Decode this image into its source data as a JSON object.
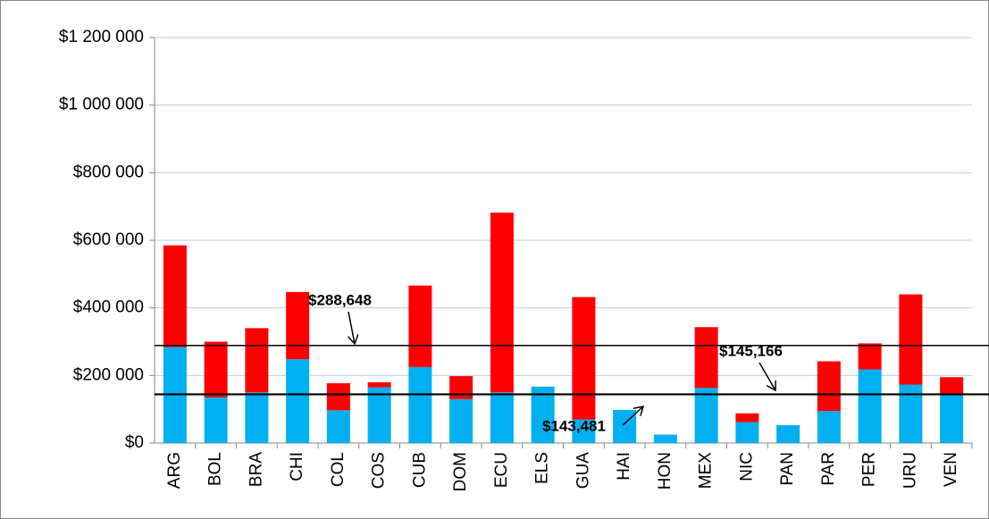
{
  "chart_data": {
    "type": "stacked_bar",
    "categories": [
      "ARG",
      "BOL",
      "BRA",
      "CHI",
      "COL",
      "COS",
      "CUB",
      "DOM",
      "ECU",
      "ELS",
      "GUA",
      "HAI",
      "HON",
      "MEX",
      "NIC",
      "PAN",
      "PAR",
      "PER",
      "URU",
      "VEN"
    ],
    "series": [
      {
        "color": "#00b0f0",
        "values": [
          284000,
          135000,
          150000,
          248000,
          97000,
          165000,
          225000,
          130000,
          150000,
          167000,
          70000,
          98000,
          25000,
          163000,
          62000,
          53000,
          95000,
          218000,
          173000,
          145000
        ]
      },
      {
        "color": "#ff0000",
        "values": [
          301000,
          165000,
          190000,
          199000,
          80000,
          15000,
          241000,
          68000,
          532000,
          0,
          362000,
          0,
          0,
          180000,
          26000,
          0,
          147000,
          77000,
          267000,
          50000
        ]
      }
    ],
    "ylim": [
      0,
      1200000
    ],
    "yticks": [
      {
        "value": 0,
        "label": "$0"
      },
      {
        "value": 200000,
        "label": "$200 000"
      },
      {
        "value": 400000,
        "label": "$400 000"
      },
      {
        "value": 600000,
        "label": "$600 000"
      },
      {
        "value": 800000,
        "label": "$800 000"
      },
      {
        "value": 1000000,
        "label": "$1 000 000"
      },
      {
        "value": 1200000,
        "label": "$1 200 000"
      }
    ],
    "grid": true,
    "reference_lines": [
      {
        "value": 288648,
        "label": "$288,648"
      },
      {
        "value": 145166,
        "label": "$145,166"
      },
      {
        "value": 143481,
        "label": "$143,481"
      }
    ]
  }
}
